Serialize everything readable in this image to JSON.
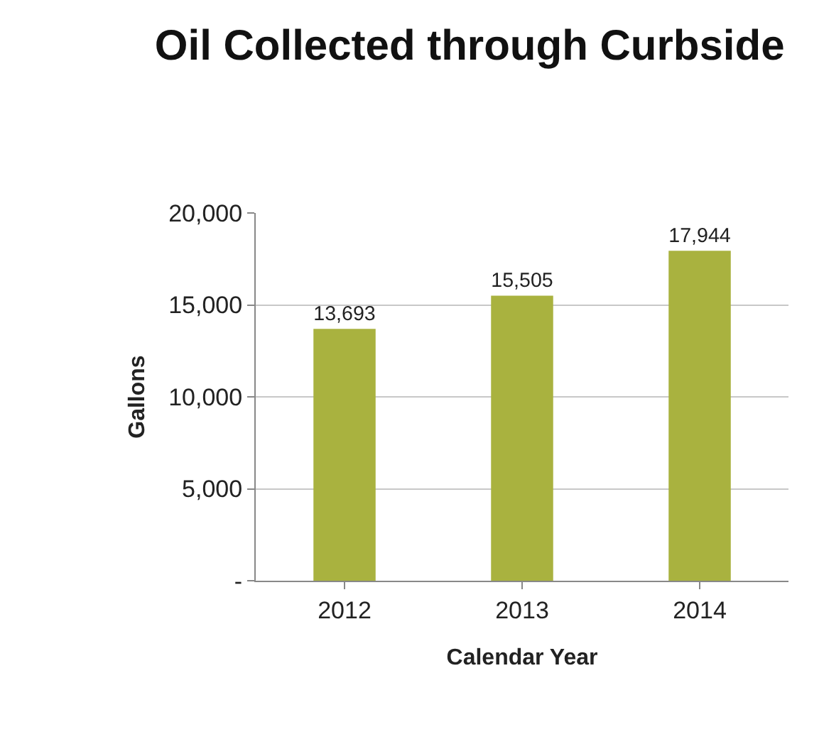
{
  "chart_data": {
    "type": "bar",
    "title": "Oil Collected through Curbside",
    "xlabel": "Calendar Year",
    "ylabel": "Gallons",
    "categories": [
      "2012",
      "2013",
      "2014"
    ],
    "values": [
      13693,
      15505,
      17944
    ],
    "value_labels": [
      "13,693",
      "15,505",
      "17,944"
    ],
    "color": "#a9b23f",
    "ylim": [
      0,
      20000
    ],
    "yticks": [
      {
        "value": 0,
        "label": "-"
      },
      {
        "value": 5000,
        "label": "5,000"
      },
      {
        "value": 10000,
        "label": "10,000"
      },
      {
        "value": 15000,
        "label": "15,000"
      },
      {
        "value": 20000,
        "label": "20,000"
      }
    ],
    "grid": "y",
    "legend": false
  }
}
